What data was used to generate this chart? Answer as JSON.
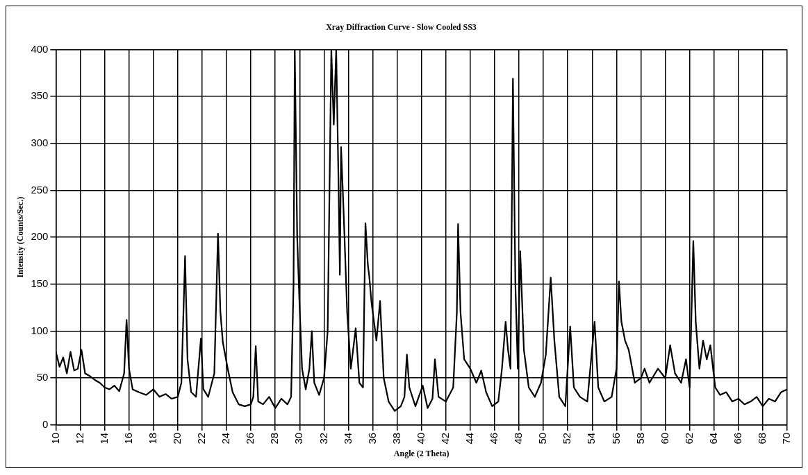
{
  "chart_data": {
    "type": "line",
    "title": "Xray Diffraction Curve - Slow Cooled SS3",
    "xlabel": "Angle (2 Theta)",
    "ylabel": "Intensity (Counts/Sec.)",
    "xlim": [
      10,
      70
    ],
    "xticks": [
      10,
      12,
      14,
      16,
      18,
      20,
      22,
      24,
      26,
      28,
      30,
      32,
      34,
      36,
      38,
      40,
      42,
      44,
      46,
      48,
      50,
      52,
      54,
      56,
      58,
      60,
      62,
      64,
      66,
      68,
      70
    ],
    "ylim": [
      0,
      400
    ],
    "yticks": [
      0,
      50,
      100,
      150,
      200,
      250,
      300,
      350,
      400
    ],
    "grid": true,
    "legend": false,
    "marker": "none",
    "line_style": "solid",
    "series": [
      {
        "color": "#000000",
        "x": [
          10,
          10.3,
          10.6,
          10.9,
          11.2,
          11.5,
          11.8,
          12.1,
          12.4,
          12.8,
          13.2,
          13.6,
          14,
          14.4,
          14.8,
          15.2,
          15.6,
          15.8,
          16.0,
          16.3,
          16.8,
          17.4,
          18,
          18.5,
          19,
          19.5,
          20,
          20.3,
          20.6,
          20.8,
          21.1,
          21.5,
          21.9,
          22.1,
          22.5,
          23.0,
          23.3,
          23.5,
          23.7,
          24.1,
          24.5,
          25,
          25.5,
          26,
          26.2,
          26.4,
          26.6,
          27,
          27.5,
          28,
          28.5,
          29,
          29.3,
          29.5,
          29.6,
          29.8,
          30.0,
          30.2,
          30.5,
          30.8,
          31.0,
          31.2,
          31.6,
          32.0,
          32.3,
          32.6,
          32.8,
          33.0,
          33.2,
          33.3,
          33.4,
          33.6,
          33.9,
          34.2,
          34.6,
          34.9,
          35.2,
          35.4,
          35.6,
          35.7,
          35.9,
          36.1,
          36.3,
          36.6,
          36.9,
          37.3,
          37.8,
          38.3,
          38.6,
          38.8,
          39.0,
          39.5,
          40.1,
          40.5,
          40.9,
          41.1,
          41.4,
          42,
          42.6,
          42.9,
          43.0,
          43.2,
          43.5,
          44,
          44.5,
          44.9,
          45.3,
          45.8,
          46.3,
          46.6,
          46.9,
          47.1,
          47.3,
          47.5,
          47.7,
          47.9,
          48.1,
          48.4,
          48.8,
          49.3,
          49.8,
          50.2,
          50.6,
          50.9,
          51.3,
          51.8,
          52.2,
          52.5,
          53,
          53.6,
          54.2,
          54.5,
          55,
          55.6,
          56.0,
          56.2,
          56.4,
          56.7,
          57,
          57.5,
          58,
          58.3,
          58.7,
          59.4,
          60,
          60.4,
          60.8,
          61.3,
          61.7,
          62.0,
          62.3,
          62.5,
          62.8,
          63.1,
          63.4,
          63.7,
          64.1,
          64.5,
          65,
          65.5,
          66,
          66.5,
          67,
          67.5,
          68,
          68.5,
          69,
          69.5,
          70
        ],
        "values": [
          78,
          62,
          72,
          55,
          78,
          58,
          60,
          80,
          55,
          52,
          48,
          45,
          40,
          38,
          42,
          36,
          55,
          112,
          60,
          38,
          35,
          32,
          38,
          30,
          33,
          28,
          30,
          45,
          180,
          70,
          35,
          30,
          92,
          38,
          30,
          55,
          204,
          120,
          88,
          60,
          35,
          22,
          20,
          22,
          30,
          84,
          25,
          22,
          30,
          18,
          28,
          22,
          30,
          150,
          400,
          200,
          125,
          60,
          38,
          60,
          100,
          45,
          32,
          50,
          100,
          400,
          320,
          400,
          250,
          160,
          296,
          230,
          120,
          60,
          103,
          45,
          40,
          215,
          170,
          160,
          130,
          110,
          90,
          132,
          50,
          25,
          15,
          20,
          30,
          75,
          40,
          20,
          42,
          18,
          28,
          70,
          30,
          25,
          40,
          120,
          214,
          120,
          70,
          60,
          45,
          58,
          35,
          20,
          25,
          60,
          110,
          80,
          60,
          369,
          150,
          60,
          185,
          80,
          40,
          30,
          45,
          75,
          157,
          90,
          30,
          20,
          105,
          40,
          30,
          25,
          110,
          40,
          25,
          30,
          60,
          153,
          110,
          90,
          80,
          45,
          50,
          60,
          45,
          60,
          50,
          85,
          55,
          45,
          70,
          40,
          196,
          110,
          60,
          90,
          70,
          85,
          40,
          32,
          35,
          25,
          28,
          22,
          25,
          30,
          20,
          28,
          25,
          35,
          38
        ]
      }
    ]
  }
}
